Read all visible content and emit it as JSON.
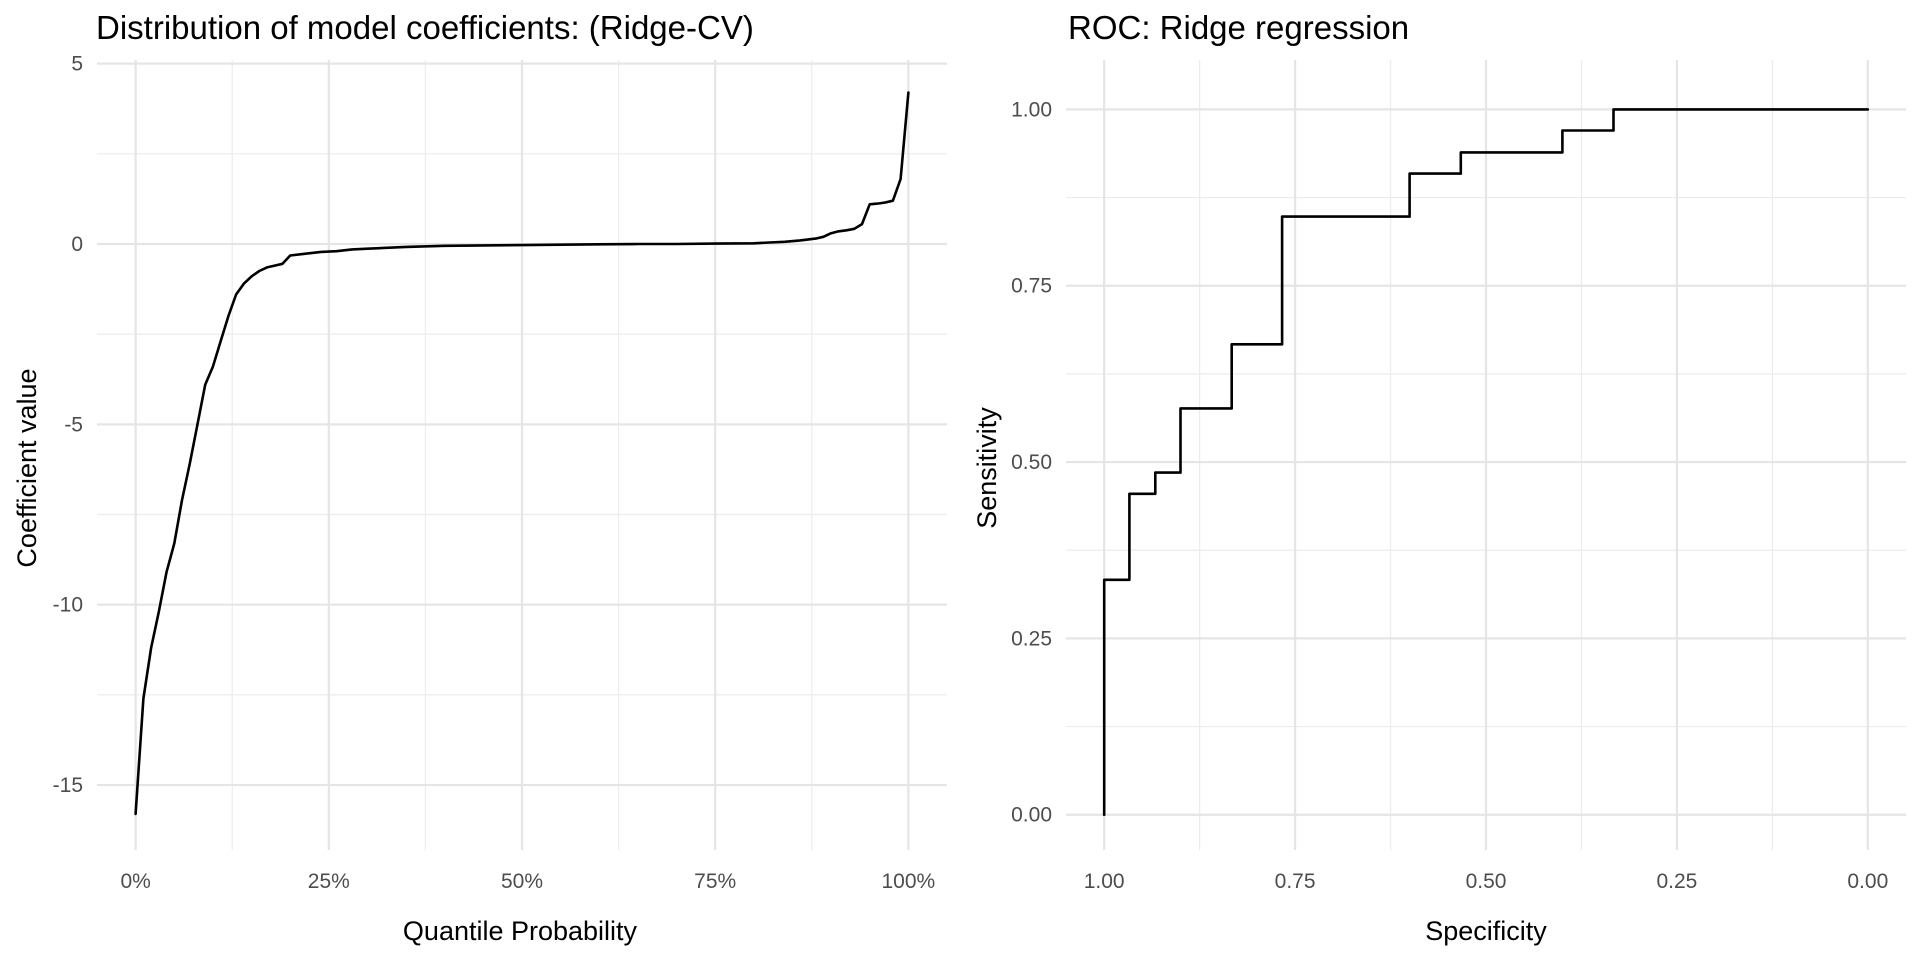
{
  "chart_data": [
    {
      "type": "line",
      "title": "Distribution of model coefficients: (Ridge-CV)",
      "xlabel": "Quantile Probability",
      "ylabel": "Coefficient value",
      "xlim": [
        -0.05,
        1.05
      ],
      "ylim": [
        -16.8,
        5.1
      ],
      "x_ticks": [
        {
          "value": 0,
          "label": "0%"
        },
        {
          "value": 0.25,
          "label": "25%"
        },
        {
          "value": 0.5,
          "label": "50%"
        },
        {
          "value": 0.75,
          "label": "75%"
        },
        {
          "value": 1,
          "label": "100%"
        }
      ],
      "y_ticks": [
        {
          "value": 5,
          "label": "5"
        },
        {
          "value": 0,
          "label": "0"
        },
        {
          "value": -5,
          "label": "-5"
        },
        {
          "value": -10,
          "label": "-10"
        },
        {
          "value": -15,
          "label": "-15"
        }
      ],
      "grid": true,
      "series": [
        {
          "x": [
            0,
            0.01,
            0.02,
            0.03,
            0.04,
            0.05,
            0.06,
            0.07,
            0.08,
            0.09,
            0.1,
            0.11,
            0.12,
            0.13,
            0.14,
            0.15,
            0.16,
            0.17,
            0.18,
            0.19,
            0.2,
            0.22,
            0.24,
            0.26,
            0.28,
            0.3,
            0.35,
            0.4,
            0.45,
            0.5,
            0.55,
            0.6,
            0.65,
            0.7,
            0.75,
            0.8,
            0.82,
            0.84,
            0.86,
            0.88,
            0.89,
            0.9,
            0.91,
            0.92,
            0.93,
            0.94,
            0.95,
            0.96,
            0.97,
            0.98,
            0.99,
            1.0
          ],
          "y": [
            -15.8,
            -12.6,
            -11.2,
            -10.2,
            -9.1,
            -8.3,
            -7.1,
            -6.1,
            -5.0,
            -3.9,
            -3.4,
            -2.7,
            -2.0,
            -1.4,
            -1.1,
            -0.9,
            -0.75,
            -0.65,
            -0.6,
            -0.55,
            -0.32,
            -0.27,
            -0.22,
            -0.2,
            -0.15,
            -0.13,
            -0.08,
            -0.05,
            -0.04,
            -0.03,
            -0.02,
            -0.01,
            0.0,
            0.0,
            0.01,
            0.02,
            0.04,
            0.06,
            0.1,
            0.15,
            0.2,
            0.3,
            0.35,
            0.38,
            0.42,
            0.55,
            1.1,
            1.12,
            1.15,
            1.2,
            1.8,
            4.2
          ]
        }
      ]
    },
    {
      "type": "line",
      "title": "ROC: Ridge regression",
      "xlabel": "Specificity",
      "ylabel": "Sensitivity",
      "xlim": [
        1.05,
        -0.05
      ],
      "ylim": [
        -0.05,
        1.07
      ],
      "x_ticks": [
        {
          "value": 1,
          "label": "1.00"
        },
        {
          "value": 0.75,
          "label": "0.75"
        },
        {
          "value": 0.5,
          "label": "0.50"
        },
        {
          "value": 0.25,
          "label": "0.25"
        },
        {
          "value": 0,
          "label": "0.00"
        }
      ],
      "y_ticks": [
        {
          "value": 0,
          "label": "0.00"
        },
        {
          "value": 0.25,
          "label": "0.25"
        },
        {
          "value": 0.5,
          "label": "0.50"
        },
        {
          "value": 0.75,
          "label": "0.75"
        },
        {
          "value": 1,
          "label": "1.00"
        }
      ],
      "grid": true,
      "series": [
        {
          "x": [
            1.0,
            1.0,
            0.967,
            0.967,
            0.933,
            0.933,
            0.9,
            0.9,
            0.833,
            0.833,
            0.767,
            0.767,
            0.6,
            0.6,
            0.533,
            0.533,
            0.4,
            0.4,
            0.333,
            0.333,
            0.0
          ],
          "y": [
            0.0,
            0.333,
            0.333,
            0.455,
            0.455,
            0.485,
            0.485,
            0.576,
            0.576,
            0.667,
            0.667,
            0.848,
            0.848,
            0.909,
            0.909,
            0.939,
            0.939,
            0.97,
            0.97,
            1.0,
            1.0
          ]
        }
      ]
    }
  ]
}
